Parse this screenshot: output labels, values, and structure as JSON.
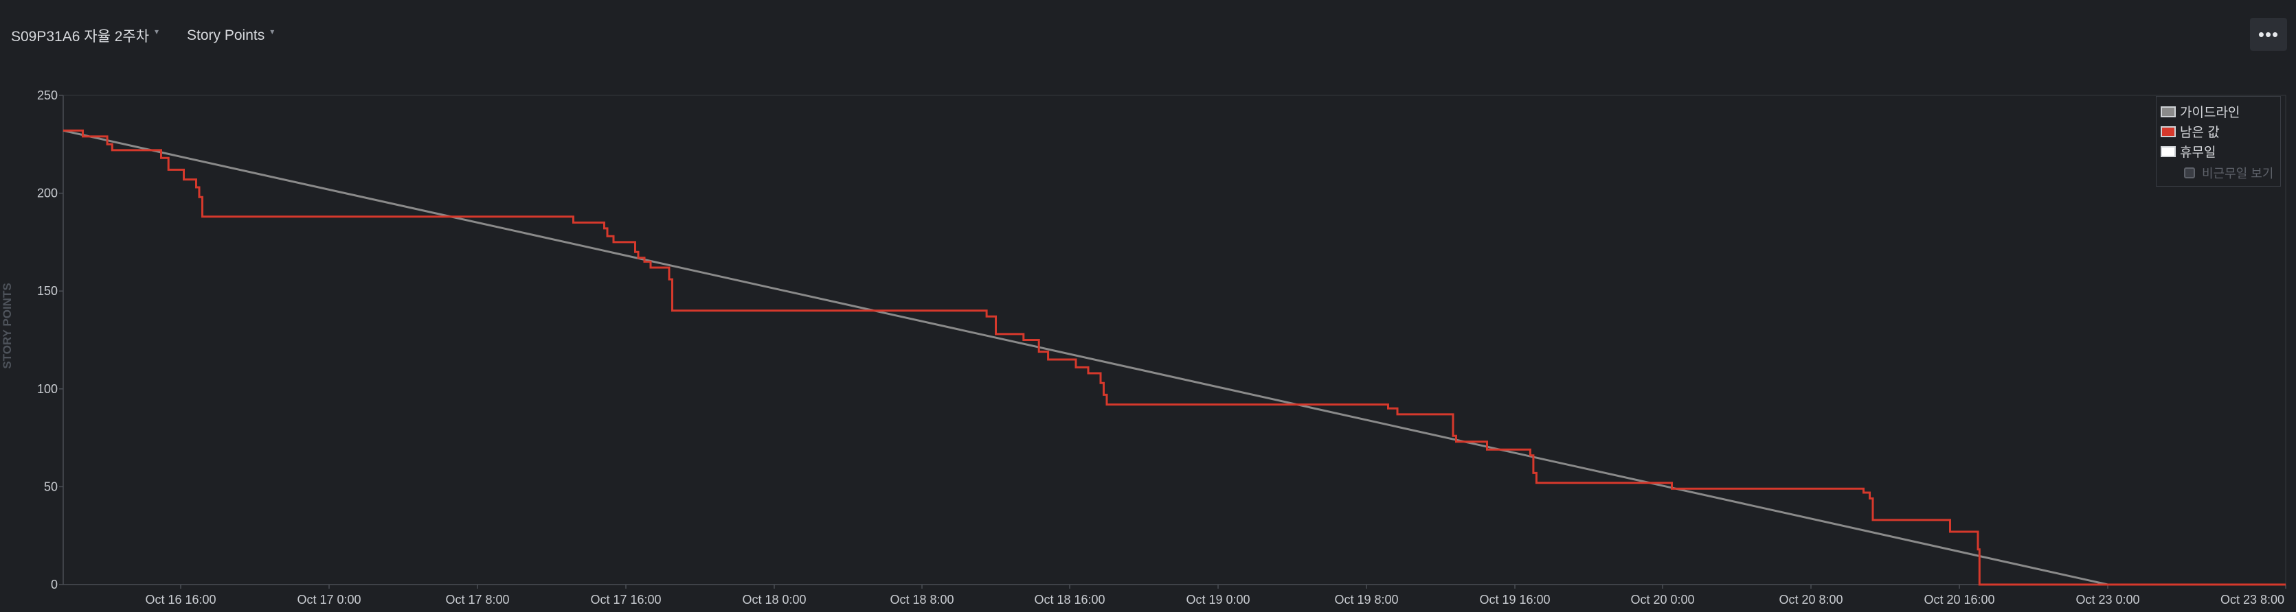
{
  "header": {
    "sprint_label": "S09P31A6 자율 2주차",
    "metric_label": "Story Points",
    "more_label": "•••"
  },
  "colors": {
    "guideline": "#8a8a8a",
    "remaining": "#d6392c",
    "holiday": "#ffffff",
    "grid": "#34373d",
    "axis_text": "#c9ccd1"
  },
  "legend": {
    "guideline": "가이드라인",
    "remaining": "남은 값",
    "holiday": "휴무일",
    "show_nonworking": "비근무일 보기"
  },
  "chart_data": {
    "type": "line",
    "ylabel": "STORY POINTS",
    "ylim": [
      0,
      250
    ],
    "yticks": [
      0,
      50,
      100,
      150,
      200,
      250
    ],
    "xlim": [
      "2023-10-16 08:00",
      "2023-10-23 08:00"
    ],
    "xticks": [
      {
        "t": "2023-10-16 16:00",
        "label": "Oct 16 16:00"
      },
      {
        "t": "2023-10-17 00:00",
        "label": "Oct 17 0:00"
      },
      {
        "t": "2023-10-17 08:00",
        "label": "Oct 17 8:00"
      },
      {
        "t": "2023-10-17 16:00",
        "label": "Oct 17 16:00"
      },
      {
        "t": "2023-10-18 00:00",
        "label": "Oct 18 0:00"
      },
      {
        "t": "2023-10-18 08:00",
        "label": "Oct 18 8:00"
      },
      {
        "t": "2023-10-18 16:00",
        "label": "Oct 18 16:00"
      },
      {
        "t": "2023-10-19 00:00",
        "label": "Oct 19 0:00"
      },
      {
        "t": "2023-10-19 08:00",
        "label": "Oct 19 8:00"
      },
      {
        "t": "2023-10-19 16:00",
        "label": "Oct 19 16:00"
      },
      {
        "t": "2023-10-20 00:00",
        "label": "Oct 20 0:00"
      },
      {
        "t": "2023-10-20 08:00",
        "label": "Oct 20 8:00"
      },
      {
        "t": "2023-10-20 16:00",
        "label": "Oct 20 16:00"
      },
      {
        "t": "2023-10-23 00:00",
        "label": "Oct 23 0:00"
      },
      {
        "t": "2023-10-23 08:00",
        "label": "Oct 23 8:00"
      }
    ],
    "series": [
      {
        "name": "가이드라인",
        "style": "straight",
        "points": [
          [
            "2023-10-16 08:00",
            232
          ],
          [
            "2023-10-23 00:00",
            0
          ]
        ]
      },
      {
        "name": "남은 값",
        "style": "step",
        "points": [
          [
            "2023-10-16 08:00",
            232
          ],
          [
            "2023-10-16 09:20",
            229
          ],
          [
            "2023-10-16 11:00",
            225
          ],
          [
            "2023-10-16 11:20",
            222
          ],
          [
            "2023-10-16 14:40",
            218
          ],
          [
            "2023-10-16 15:10",
            212
          ],
          [
            "2023-10-16 16:10",
            207
          ],
          [
            "2023-10-16 16:50",
            203
          ],
          [
            "2023-10-16 17:00",
            198
          ],
          [
            "2023-10-16 17:10",
            188
          ],
          [
            "2023-10-17 13:10",
            185
          ],
          [
            "2023-10-17 14:50",
            182
          ],
          [
            "2023-10-17 15:00",
            178
          ],
          [
            "2023-10-17 15:20",
            175
          ],
          [
            "2023-10-17 16:30",
            170
          ],
          [
            "2023-10-17 16:40",
            167
          ],
          [
            "2023-10-17 17:00",
            165
          ],
          [
            "2023-10-17 17:20",
            162
          ],
          [
            "2023-10-17 18:20",
            156
          ],
          [
            "2023-10-17 18:30",
            140
          ],
          [
            "2023-10-18 11:30",
            137
          ],
          [
            "2023-10-18 12:00",
            128
          ],
          [
            "2023-10-18 13:30",
            125
          ],
          [
            "2023-10-18 14:20",
            119
          ],
          [
            "2023-10-18 14:50",
            115
          ],
          [
            "2023-10-18 16:20",
            111
          ],
          [
            "2023-10-18 17:00",
            108
          ],
          [
            "2023-10-18 17:40",
            103
          ],
          [
            "2023-10-18 17:50",
            97
          ],
          [
            "2023-10-18 18:00",
            92
          ],
          [
            "2023-10-19 09:10",
            90
          ],
          [
            "2023-10-19 09:40",
            87
          ],
          [
            "2023-10-19 12:40",
            76
          ],
          [
            "2023-10-19 12:50",
            73
          ],
          [
            "2023-10-19 14:30",
            69
          ],
          [
            "2023-10-19 16:50",
            66
          ],
          [
            "2023-10-19 17:00",
            57
          ],
          [
            "2023-10-19 17:10",
            52
          ],
          [
            "2023-10-20 00:30",
            49
          ],
          [
            "2023-10-20 10:50",
            47
          ],
          [
            "2023-10-20 11:10",
            44
          ],
          [
            "2023-10-20 11:20",
            33
          ],
          [
            "2023-10-20 15:30",
            27
          ],
          [
            "2023-10-20 17:00",
            18
          ],
          [
            "2023-10-20 17:05",
            0
          ],
          [
            "2023-10-23 08:00",
            0
          ]
        ]
      }
    ],
    "legend_position": "top-right",
    "grid": false
  }
}
